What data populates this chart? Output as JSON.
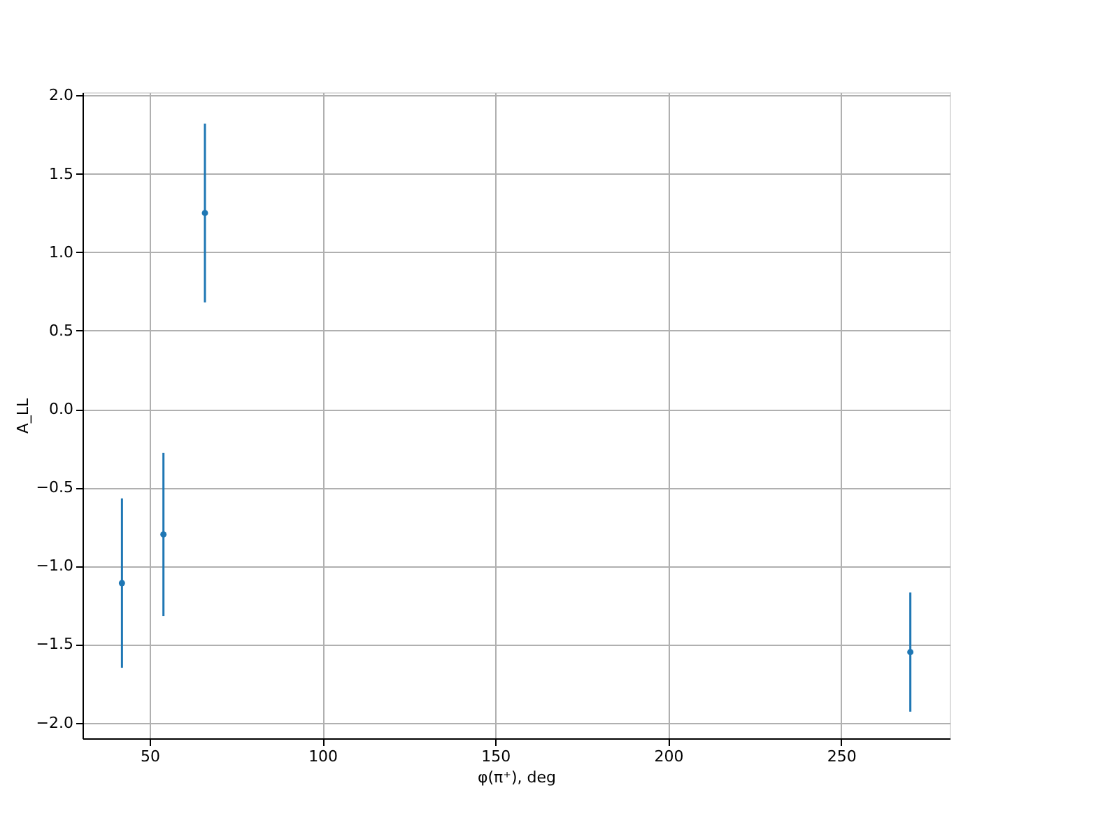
{
  "chart_data": {
    "type": "scatter",
    "xlabel": "φ(π⁺), deg",
    "ylabel": "A_LL",
    "x": [
      42,
      54,
      66,
      270
    ],
    "series": [
      {
        "color": "#1f77b4",
        "values": [
          -1.11,
          -0.8,
          1.25,
          -1.55
        ],
        "errors": [
          0.54,
          0.52,
          0.57,
          0.38
        ]
      }
    ],
    "xlim": [
      30.6,
      281.4
    ],
    "ylim": [
      -2.1,
      2.02
    ],
    "xticks": [
      50,
      100,
      150,
      200,
      250
    ],
    "yticks": [
      {
        "value": -2.0,
        "label": "−2.0"
      },
      {
        "value": -1.5,
        "label": "−1.5"
      },
      {
        "value": -1.0,
        "label": "−1.0"
      },
      {
        "value": -0.5,
        "label": "−0.5"
      },
      {
        "value": 0.0,
        "label": "0.0"
      },
      {
        "value": 0.5,
        "label": "0.5"
      },
      {
        "value": 1.0,
        "label": "1.0"
      },
      {
        "value": 1.5,
        "label": "1.5"
      },
      {
        "value": 2.0,
        "label": "2.0"
      }
    ],
    "grid": true,
    "marker": "circle"
  }
}
